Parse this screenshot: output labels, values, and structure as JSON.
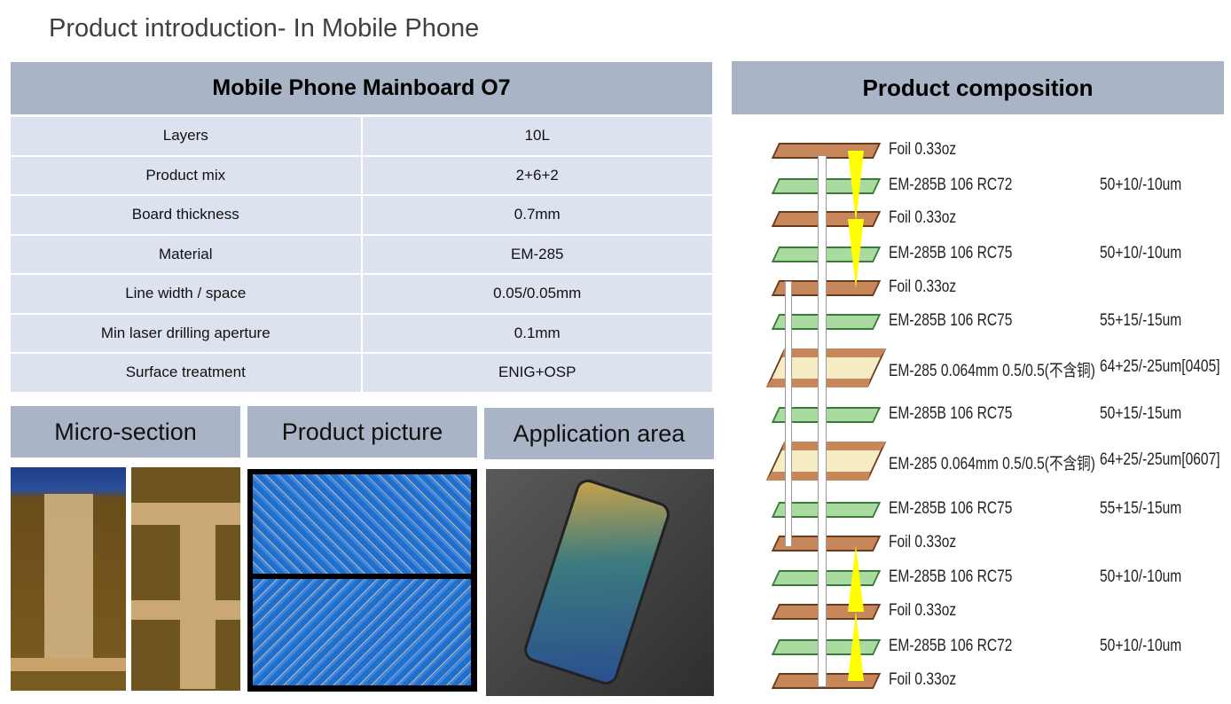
{
  "title": "Product introduction- In Mobile Phone",
  "spec": {
    "heading": "Mobile Phone Mainboard O7",
    "rows": [
      {
        "label": "Layers",
        "value": "10L"
      },
      {
        "label": "Product mix",
        "value": "2+6+2"
      },
      {
        "label": "Board thickness",
        "value": "0.7mm"
      },
      {
        "label": "Material",
        "value": "EM-285"
      },
      {
        "label": "Line width / space",
        "value": "0.05/0.05mm"
      },
      {
        "label": "Min laser drilling aperture",
        "value": "0.1mm"
      },
      {
        "label": "Surface treatment",
        "value": "ENIG+OSP"
      }
    ]
  },
  "sections": {
    "micro": "Micro-section",
    "picture": "Product picture",
    "application": "Application area"
  },
  "composition": {
    "heading": "Product composition",
    "layers": [
      {
        "type": "foil",
        "label": "Foil 0.33oz",
        "value": ""
      },
      {
        "type": "prepreg",
        "label": "EM-285B 106 RC72",
        "value": "50+10/-10um"
      },
      {
        "type": "foil",
        "label": "Foil 0.33oz",
        "value": ""
      },
      {
        "type": "prepreg",
        "label": "EM-285B 106 RC75",
        "value": "50+10/-10um"
      },
      {
        "type": "foil",
        "label": "Foil 0.33oz",
        "value": ""
      },
      {
        "type": "prepreg",
        "label": "EM-285B 106 RC75",
        "value": "55+15/-15um"
      },
      {
        "type": "core",
        "label": "EM-285 0.064mm 0.5/0.5(不含铜)",
        "value": "64+25/-25um[0405]"
      },
      {
        "type": "prepreg",
        "label": "EM-285B 106 RC75",
        "value": "50+15/-15um"
      },
      {
        "type": "core",
        "label": "EM-285 0.064mm 0.5/0.5(不含铜)",
        "value": "64+25/-25um[0607]"
      },
      {
        "type": "prepreg",
        "label": "EM-285B 106 RC75",
        "value": "55+15/-15um"
      },
      {
        "type": "foil",
        "label": "Foil 0.33oz",
        "value": ""
      },
      {
        "type": "prepreg",
        "label": "EM-285B 106 RC75",
        "value": "50+10/-10um"
      },
      {
        "type": "foil",
        "label": "Foil 0.33oz",
        "value": ""
      },
      {
        "type": "prepreg",
        "label": "EM-285B 106 RC72",
        "value": "50+10/-10um"
      },
      {
        "type": "foil",
        "label": "Foil 0.33oz",
        "value": ""
      }
    ]
  },
  "colors": {
    "header": "#a9b4c6",
    "cell": "#dde3ee",
    "foil": "#c8875a",
    "prepreg": "#a9dba0",
    "core": "#f5ecc4",
    "via": "#ffff00"
  }
}
